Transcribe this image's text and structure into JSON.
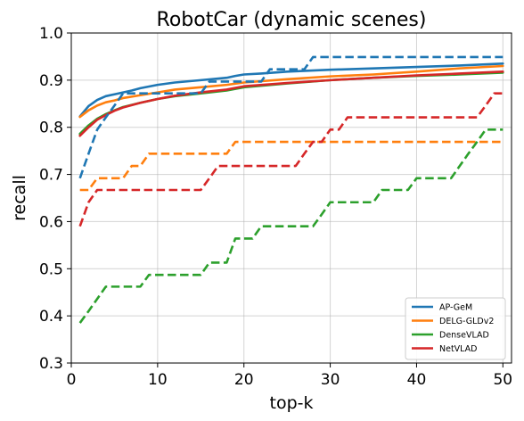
{
  "chart_data": {
    "type": "line",
    "title": "RobotCar (dynamic scenes)",
    "xlabel": "top-k",
    "ylabel": "recall",
    "xlim": [
      0,
      51
    ],
    "ylim": [
      0.3,
      1.0
    ],
    "xticks": [
      0,
      10,
      20,
      30,
      40,
      50
    ],
    "yticks": [
      0.3,
      0.4,
      0.5,
      0.6,
      0.7,
      0.8,
      0.9,
      1.0
    ],
    "xtick_labels": [
      "0",
      "10",
      "20",
      "30",
      "40",
      "50"
    ],
    "ytick_labels": [
      "0.3",
      "0.4",
      "0.5",
      "0.6",
      "0.7",
      "0.8",
      "0.9",
      "1.0"
    ],
    "grid": true,
    "legend_position": "lower-right",
    "legend_entries": [
      {
        "name": "AP-GeM",
        "color": "#1f77b4"
      },
      {
        "name": "DELG-GLDv2",
        "color": "#ff7f0e"
      },
      {
        "name": "DenseVLAD",
        "color": "#2ca02c"
      },
      {
        "name": "NetVLAD",
        "color": "#d62728"
      }
    ],
    "series": [
      {
        "name": "AP-GeM",
        "style": "solid",
        "color": "#1f77b4",
        "x": [
          1,
          2,
          3,
          4,
          5,
          6,
          7,
          8,
          10,
          12,
          15,
          18,
          19,
          20,
          22,
          25,
          30,
          35,
          40,
          45,
          50
        ],
        "y": [
          0.823,
          0.845,
          0.858,
          0.866,
          0.87,
          0.874,
          0.878,
          0.883,
          0.89,
          0.895,
          0.9,
          0.905,
          0.909,
          0.912,
          0.914,
          0.918,
          0.922,
          0.925,
          0.928,
          0.931,
          0.935
        ]
      },
      {
        "name": "DELG-GLDv2",
        "style": "solid",
        "color": "#ff7f0e",
        "x": [
          1,
          2,
          3,
          4,
          5,
          6,
          8,
          10,
          12,
          15,
          18,
          20,
          25,
          30,
          35,
          40,
          45,
          50
        ],
        "y": [
          0.822,
          0.836,
          0.846,
          0.853,
          0.857,
          0.862,
          0.868,
          0.874,
          0.88,
          0.885,
          0.89,
          0.895,
          0.902,
          0.908,
          0.912,
          0.918,
          0.925,
          0.93
        ]
      },
      {
        "name": "DenseVLAD",
        "style": "solid",
        "color": "#2ca02c",
        "x": [
          1,
          2,
          3,
          4,
          5,
          6,
          8,
          10,
          12,
          15,
          18,
          20,
          25,
          30,
          35,
          40,
          45,
          50
        ],
        "y": [
          0.786,
          0.804,
          0.818,
          0.828,
          0.836,
          0.843,
          0.852,
          0.86,
          0.866,
          0.872,
          0.878,
          0.885,
          0.893,
          0.9,
          0.905,
          0.909,
          0.912,
          0.916
        ]
      },
      {
        "name": "NetVLAD",
        "style": "solid",
        "color": "#d62728",
        "x": [
          1,
          2,
          3,
          4,
          5,
          6,
          8,
          10,
          12,
          15,
          18,
          20,
          25,
          30,
          35,
          40,
          45,
          50
        ],
        "y": [
          0.782,
          0.8,
          0.816,
          0.826,
          0.835,
          0.842,
          0.852,
          0.86,
          0.867,
          0.874,
          0.88,
          0.887,
          0.894,
          0.9,
          0.905,
          0.91,
          0.914,
          0.918
        ]
      },
      {
        "name": "AP-GeM",
        "style": "dashed",
        "color": "#1f77b4",
        "x": [
          1,
          2,
          3,
          4,
          5,
          6,
          7,
          8,
          9,
          10,
          11,
          12,
          13,
          14,
          15,
          16,
          17,
          18,
          19,
          20,
          21,
          22,
          23,
          24,
          25,
          26,
          27,
          28,
          29,
          30,
          31,
          32,
          33,
          34,
          35,
          36,
          37,
          38,
          39,
          40,
          41,
          42,
          43,
          44,
          45,
          46,
          47,
          48,
          49,
          50
        ],
        "y": [
          0.692,
          0.744,
          0.795,
          0.821,
          0.846,
          0.872,
          0.872,
          0.872,
          0.872,
          0.872,
          0.872,
          0.872,
          0.872,
          0.872,
          0.872,
          0.897,
          0.897,
          0.897,
          0.897,
          0.897,
          0.897,
          0.897,
          0.923,
          0.923,
          0.923,
          0.923,
          0.923,
          0.949,
          0.949,
          0.949,
          0.949,
          0.949,
          0.949,
          0.949,
          0.949,
          0.949,
          0.949,
          0.949,
          0.949,
          0.949,
          0.949,
          0.949,
          0.949,
          0.949,
          0.949,
          0.949,
          0.949,
          0.949,
          0.949,
          0.949
        ]
      },
      {
        "name": "DELG-GLDv2",
        "style": "dashed",
        "color": "#ff7f0e",
        "x": [
          1,
          2,
          3,
          4,
          5,
          6,
          7,
          8,
          9,
          10,
          11,
          12,
          13,
          14,
          15,
          16,
          17,
          18,
          19,
          20,
          21,
          22,
          23,
          24,
          25,
          26,
          27,
          28,
          29,
          30,
          31,
          32,
          33,
          34,
          35,
          36,
          37,
          38,
          39,
          40,
          41,
          42,
          43,
          44,
          45,
          46,
          47,
          48,
          49,
          50
        ],
        "y": [
          0.667,
          0.667,
          0.692,
          0.692,
          0.692,
          0.692,
          0.718,
          0.718,
          0.744,
          0.744,
          0.744,
          0.744,
          0.744,
          0.744,
          0.744,
          0.744,
          0.744,
          0.744,
          0.769,
          0.769,
          0.769,
          0.769,
          0.769,
          0.769,
          0.769,
          0.769,
          0.769,
          0.769,
          0.769,
          0.769,
          0.769,
          0.769,
          0.769,
          0.769,
          0.769,
          0.769,
          0.769,
          0.769,
          0.769,
          0.769,
          0.769,
          0.769,
          0.769,
          0.769,
          0.769,
          0.769,
          0.769,
          0.769,
          0.769,
          0.769
        ]
      },
      {
        "name": "DenseVLAD",
        "style": "dashed",
        "color": "#2ca02c",
        "x": [
          1,
          2,
          3,
          4,
          5,
          6,
          7,
          8,
          9,
          10,
          11,
          12,
          13,
          14,
          15,
          16,
          17,
          18,
          19,
          20,
          21,
          22,
          23,
          24,
          25,
          26,
          27,
          28,
          29,
          30,
          31,
          32,
          33,
          34,
          35,
          36,
          37,
          38,
          39,
          40,
          41,
          42,
          43,
          44,
          45,
          46,
          47,
          48,
          49,
          50
        ],
        "y": [
          0.385,
          0.41,
          0.436,
          0.462,
          0.462,
          0.462,
          0.462,
          0.462,
          0.487,
          0.487,
          0.487,
          0.487,
          0.487,
          0.487,
          0.487,
          0.513,
          0.513,
          0.513,
          0.564,
          0.564,
          0.564,
          0.59,
          0.59,
          0.59,
          0.59,
          0.59,
          0.59,
          0.59,
          0.615,
          0.641,
          0.641,
          0.641,
          0.641,
          0.641,
          0.641,
          0.667,
          0.667,
          0.667,
          0.667,
          0.692,
          0.692,
          0.692,
          0.692,
          0.692,
          0.718,
          0.744,
          0.769,
          0.795,
          0.795,
          0.795
        ]
      },
      {
        "name": "NetVLAD",
        "style": "dashed",
        "color": "#d62728",
        "x": [
          1,
          2,
          3,
          4,
          5,
          6,
          7,
          8,
          9,
          10,
          11,
          12,
          13,
          14,
          15,
          16,
          17,
          18,
          19,
          20,
          21,
          22,
          23,
          24,
          25,
          26,
          27,
          28,
          29,
          30,
          31,
          32,
          33,
          34,
          35,
          36,
          37,
          38,
          39,
          40,
          41,
          42,
          43,
          44,
          45,
          46,
          47,
          48,
          49,
          50
        ],
        "y": [
          0.59,
          0.641,
          0.667,
          0.667,
          0.667,
          0.667,
          0.667,
          0.667,
          0.667,
          0.667,
          0.667,
          0.667,
          0.667,
          0.667,
          0.667,
          0.692,
          0.718,
          0.718,
          0.718,
          0.718,
          0.718,
          0.718,
          0.718,
          0.718,
          0.718,
          0.718,
          0.744,
          0.769,
          0.769,
          0.795,
          0.795,
          0.821,
          0.821,
          0.821,
          0.821,
          0.821,
          0.821,
          0.821,
          0.821,
          0.821,
          0.821,
          0.821,
          0.821,
          0.821,
          0.821,
          0.821,
          0.821,
          0.846,
          0.872,
          0.872
        ]
      }
    ]
  }
}
